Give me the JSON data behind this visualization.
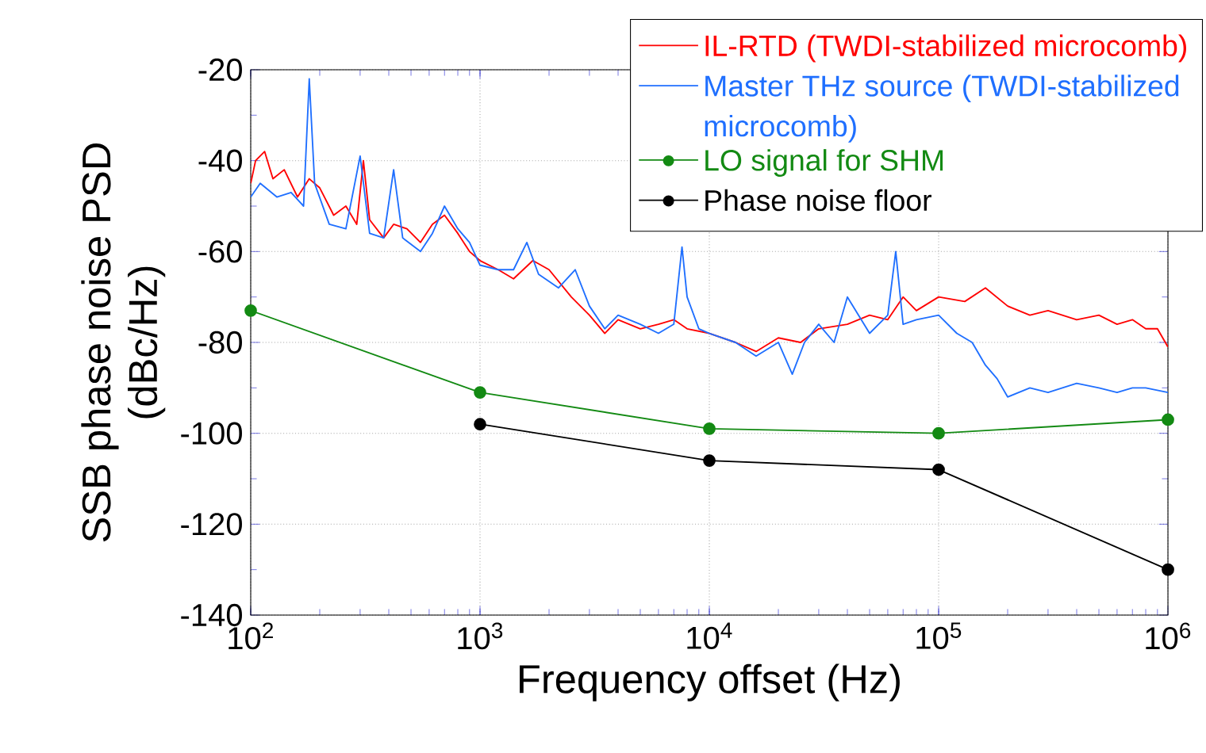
{
  "chart_data": {
    "type": "line",
    "xlabel": "Frequency offset (Hz)",
    "ylabel": "SSB phase noise PSD (dBc/Hz)",
    "log": "x",
    "grid": true,
    "legend": "top right",
    "xlim": [
      100,
      1000000
    ],
    "ylim": [
      -140,
      -20
    ],
    "xticks": [
      {
        "value": 100,
        "label": "10$^{2}$"
      },
      {
        "value": 1000,
        "label": "10$^{3}$"
      },
      {
        "value": 10000,
        "label": "10$^{4}$"
      },
      {
        "value": 100000,
        "label": "10$^{5}$"
      },
      {
        "value": 1000000,
        "label": "10$^{6}$"
      }
    ],
    "yticks": [
      -140,
      -120,
      -100,
      -80,
      -60,
      -40,
      -20
    ],
    "series": [
      {
        "name": "IL-RTD (TWDI-stabilized microcomb)",
        "color": "#ff0000",
        "marker": "none",
        "x": [
          100,
          105,
          115,
          125,
          140,
          160,
          180,
          200,
          230,
          260,
          290,
          310,
          330,
          380,
          420,
          480,
          550,
          620,
          700,
          800,
          900,
          1000,
          1200,
          1400,
          1700,
          2000,
          2500,
          3000,
          3500,
          4000,
          5000,
          6000,
          7000,
          8000,
          10000,
          13000,
          16000,
          20000,
          25000,
          30000,
          40000,
          50000,
          60000,
          70000,
          80000,
          100000,
          130000,
          160000,
          200000,
          250000,
          300000,
          400000,
          500000,
          600000,
          700000,
          800000,
          900000,
          1000000
        ],
        "values": [
          -45,
          -40,
          -38,
          -44,
          -42,
          -48,
          -44,
          -46,
          -52,
          -50,
          -54,
          -40,
          -53,
          -57,
          -54,
          -55,
          -58,
          -54,
          -52,
          -56,
          -60,
          -62,
          -64,
          -66,
          -62,
          -64,
          -70,
          -74,
          -78,
          -75,
          -77,
          -76,
          -75,
          -77,
          -78,
          -80,
          -82,
          -79,
          -80,
          -77,
          -76,
          -74,
          -75,
          -70,
          -73,
          -70,
          -71,
          -68,
          -72,
          -74,
          -73,
          -75,
          -74,
          -76,
          -75,
          -77,
          -77,
          -81
        ]
      },
      {
        "name": "Master THz source (TWDI-stabilized microcomb)",
        "color": "#1f6fff",
        "marker": "none",
        "x": [
          100,
          110,
          130,
          150,
          170,
          180,
          190,
          220,
          260,
          300,
          330,
          380,
          420,
          460,
          550,
          620,
          700,
          800,
          900,
          1000,
          1200,
          1400,
          1600,
          1800,
          2200,
          2600,
          3000,
          3500,
          4000,
          5000,
          6000,
          7000,
          7600,
          8000,
          9000,
          10000,
          13000,
          16000,
          20000,
          23000,
          26000,
          30000,
          35000,
          40000,
          50000,
          60000,
          65000,
          70000,
          80000,
          100000,
          120000,
          140000,
          160000,
          180000,
          200000,
          250000,
          300000,
          400000,
          500000,
          600000,
          700000,
          800000,
          1000000
        ],
        "values": [
          -48,
          -45,
          -48,
          -47,
          -50,
          -22,
          -45,
          -54,
          -55,
          -39,
          -56,
          -57,
          -42,
          -57,
          -60,
          -56,
          -50,
          -55,
          -58,
          -63,
          -64,
          -64,
          -58,
          -65,
          -68,
          -64,
          -72,
          -77,
          -74,
          -76,
          -78,
          -76,
          -59,
          -70,
          -77,
          -78,
          -80,
          -83,
          -80,
          -87,
          -80,
          -76,
          -80,
          -70,
          -78,
          -74,
          -60,
          -76,
          -75,
          -74,
          -78,
          -80,
          -85,
          -88,
          -92,
          -90,
          -91,
          -89,
          -90,
          -91,
          -90,
          -90,
          -91
        ]
      },
      {
        "name": "LO signal for SHM",
        "color": "#138a13",
        "marker": "circle",
        "x": [
          100,
          1000,
          10000,
          100000,
          1000000
        ],
        "values": [
          -73,
          -91,
          -99,
          -100,
          -97
        ]
      },
      {
        "name": "Phase noise floor",
        "color": "#000000",
        "marker": "circle",
        "x": [
          1000,
          10000,
          100000,
          1000000
        ],
        "values": [
          -98,
          -106,
          -108,
          -130
        ]
      }
    ]
  }
}
